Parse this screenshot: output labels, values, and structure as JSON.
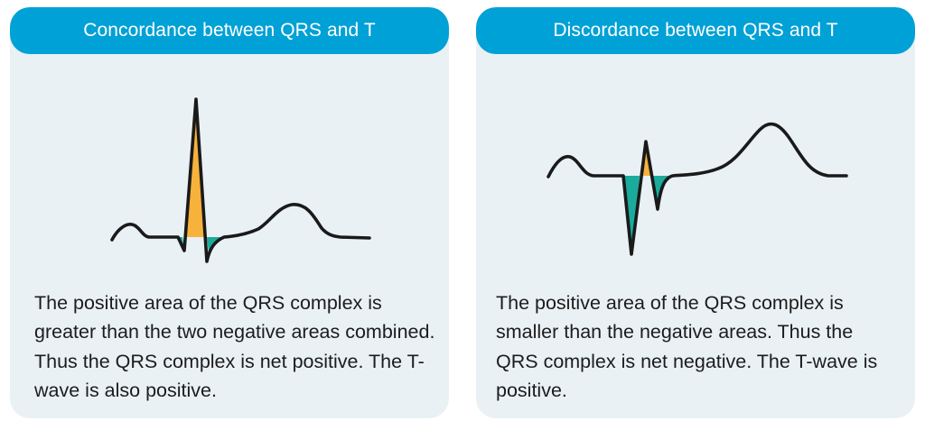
{
  "panels": [
    {
      "title": "Concordance between QRS and T",
      "description": "The positive area of the QRS complex is greater than the two negative areas combined. Thus the QRS complex is net positive. The T-wave is also positive."
    },
    {
      "title": "Discordance between QRS and T",
      "description": "The positive area of the QRS complex is smaller than the negative areas. Thus the QRS complex is net negative. The T-wave is positive."
    }
  ],
  "colors": {
    "header": "#00a1d6",
    "panel_bg": "#e9f1f5",
    "positive_area": "#f7b23b",
    "negative_area": "#1bab9c",
    "trace": "#1a1a1a"
  }
}
